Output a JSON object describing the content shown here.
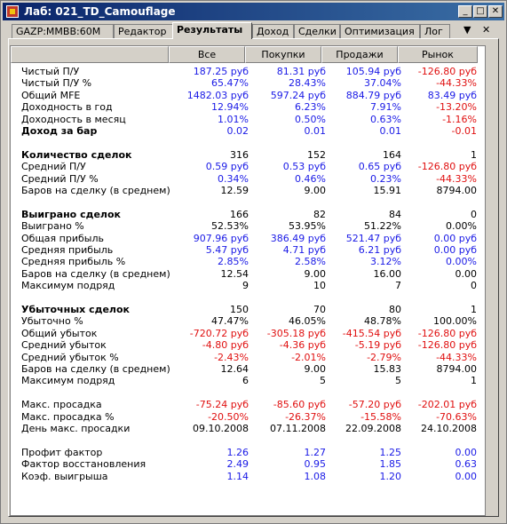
{
  "window": {
    "title": "Лаб: 021_TD_Camouflage"
  },
  "tabs": [
    "GAZP:MMBB:60M",
    "Редактор",
    "Результаты",
    "Доход",
    "Сделки",
    "Оптимизация",
    "Лог"
  ],
  "columns": [
    "Все",
    "Покупки",
    "Продажи",
    "Рынок"
  ],
  "colors": {
    "positive": "#1a1ae6",
    "negative": "#e01010",
    "neutral": "#000000"
  },
  "rows": [
    {
      "label": "Чистый П/У",
      "values": [
        "187.25 руб",
        "81.31 руб",
        "105.94 руб",
        "-126.80 руб"
      ],
      "colors": [
        "b",
        "b",
        "b",
        "r"
      ]
    },
    {
      "label": "Чистый П/У %",
      "values": [
        "65.47%",
        "28.43%",
        "37.04%",
        "-44.33%"
      ],
      "colors": [
        "b",
        "b",
        "b",
        "r"
      ]
    },
    {
      "label": "Общий MFE",
      "values": [
        "1482.03 руб",
        "597.24 руб",
        "884.79 руб",
        "83.49 руб"
      ],
      "colors": [
        "b",
        "b",
        "b",
        "b"
      ]
    },
    {
      "label": "Доходность в год",
      "values": [
        "12.94%",
        "6.23%",
        "7.91%",
        "-13.20%"
      ],
      "colors": [
        "b",
        "b",
        "b",
        "r"
      ]
    },
    {
      "label": "Доходность в месяц",
      "values": [
        "1.01%",
        "0.50%",
        "0.63%",
        "-1.16%"
      ],
      "colors": [
        "b",
        "b",
        "b",
        "r"
      ]
    },
    {
      "label": "Доход за бар",
      "bold": true,
      "values": [
        "0.02",
        "0.01",
        "0.01",
        "-0.01"
      ],
      "colors": [
        "b",
        "b",
        "b",
        "r"
      ]
    },
    {
      "label": "Количество сделок",
      "bold": true,
      "gap": true,
      "values": [
        "316",
        "152",
        "164",
        "1"
      ],
      "colors": [
        "k",
        "k",
        "k",
        "k"
      ]
    },
    {
      "label": "Средний П/У",
      "values": [
        "0.59 руб",
        "0.53 руб",
        "0.65 руб",
        "-126.80 руб"
      ],
      "colors": [
        "b",
        "b",
        "b",
        "r"
      ]
    },
    {
      "label": "Средний П/У %",
      "values": [
        "0.34%",
        "0.46%",
        "0.23%",
        "-44.33%"
      ],
      "colors": [
        "b",
        "b",
        "b",
        "r"
      ]
    },
    {
      "label": "Баров на сделку (в среднем)",
      "values": [
        "12.59",
        "9.00",
        "15.91",
        "8794.00"
      ],
      "colors": [
        "k",
        "k",
        "k",
        "k"
      ]
    },
    {
      "label": "Выиграно сделок",
      "bold": true,
      "gap": true,
      "values": [
        "166",
        "82",
        "84",
        "0"
      ],
      "colors": [
        "k",
        "k",
        "k",
        "k"
      ]
    },
    {
      "label": "Выиграно %",
      "values": [
        "52.53%",
        "53.95%",
        "51.22%",
        "0.00%"
      ],
      "colors": [
        "k",
        "k",
        "k",
        "k"
      ]
    },
    {
      "label": "Общая прибыль",
      "values": [
        "907.96 руб",
        "386.49 руб",
        "521.47 руб",
        "0.00 руб"
      ],
      "colors": [
        "b",
        "b",
        "b",
        "b"
      ]
    },
    {
      "label": "Средняя прибыль",
      "values": [
        "5.47 руб",
        "4.71 руб",
        "6.21 руб",
        "0.00 руб"
      ],
      "colors": [
        "b",
        "b",
        "b",
        "b"
      ]
    },
    {
      "label": "Средняя прибыль %",
      "values": [
        "2.85%",
        "2.58%",
        "3.12%",
        "0.00%"
      ],
      "colors": [
        "b",
        "b",
        "b",
        "b"
      ]
    },
    {
      "label": "Баров на сделку (в среднем)",
      "values": [
        "12.54",
        "9.00",
        "16.00",
        "0.00"
      ],
      "colors": [
        "k",
        "k",
        "k",
        "k"
      ]
    },
    {
      "label": "Максимум подряд",
      "values": [
        "9",
        "10",
        "7",
        "0"
      ],
      "colors": [
        "k",
        "k",
        "k",
        "k"
      ]
    },
    {
      "label": "Убыточных сделок",
      "bold": true,
      "gap": true,
      "values": [
        "150",
        "70",
        "80",
        "1"
      ],
      "colors": [
        "k",
        "k",
        "k",
        "k"
      ]
    },
    {
      "label": "Убыточно %",
      "values": [
        "47.47%",
        "46.05%",
        "48.78%",
        "100.00%"
      ],
      "colors": [
        "k",
        "k",
        "k",
        "k"
      ]
    },
    {
      "label": "Общий убыток",
      "values": [
        "-720.72 руб",
        "-305.18 руб",
        "-415.54 руб",
        "-126.80 руб"
      ],
      "colors": [
        "r",
        "r",
        "r",
        "r"
      ]
    },
    {
      "label": "Средний убыток",
      "values": [
        "-4.80 руб",
        "-4.36 руб",
        "-5.19 руб",
        "-126.80 руб"
      ],
      "colors": [
        "r",
        "r",
        "r",
        "r"
      ]
    },
    {
      "label": "Средний убыток %",
      "values": [
        "-2.43%",
        "-2.01%",
        "-2.79%",
        "-44.33%"
      ],
      "colors": [
        "r",
        "r",
        "r",
        "r"
      ]
    },
    {
      "label": "Баров на сделку (в среднем)",
      "values": [
        "12.64",
        "9.00",
        "15.83",
        "8794.00"
      ],
      "colors": [
        "k",
        "k",
        "k",
        "k"
      ]
    },
    {
      "label": "Максимум подряд",
      "values": [
        "6",
        "5",
        "5",
        "1"
      ],
      "colors": [
        "k",
        "k",
        "k",
        "k"
      ]
    },
    {
      "label": "Макс. просадка",
      "gap": true,
      "values": [
        "-75.24 руб",
        "-85.60 руб",
        "-57.20 руб",
        "-202.01 руб"
      ],
      "colors": [
        "r",
        "r",
        "r",
        "r"
      ]
    },
    {
      "label": "Макс. просадка %",
      "values": [
        "-20.50%",
        "-26.37%",
        "-15.58%",
        "-70.63%"
      ],
      "colors": [
        "r",
        "r",
        "r",
        "r"
      ]
    },
    {
      "label": "День макс. просадки",
      "values": [
        "09.10.2008",
        "07.11.2008",
        "22.09.2008",
        "24.10.2008"
      ],
      "colors": [
        "k",
        "k",
        "k",
        "k"
      ]
    },
    {
      "label": "Профит фактор",
      "gap": true,
      "values": [
        "1.26",
        "1.27",
        "1.25",
        "0.00"
      ],
      "colors": [
        "b",
        "b",
        "b",
        "b"
      ]
    },
    {
      "label": "Фактор восстановления",
      "values": [
        "2.49",
        "0.95",
        "1.85",
        "0.63"
      ],
      "colors": [
        "b",
        "b",
        "b",
        "b"
      ]
    },
    {
      "label": "Коэф. выигрыша",
      "values": [
        "1.14",
        "1.08",
        "1.20",
        "0.00"
      ],
      "colors": [
        "b",
        "b",
        "b",
        "b"
      ]
    }
  ]
}
